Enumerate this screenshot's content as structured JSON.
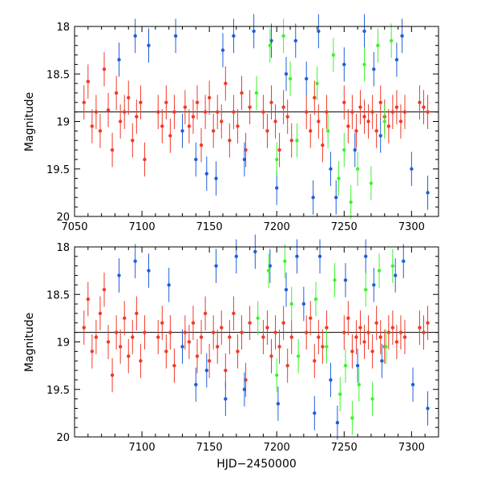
{
  "chart_data": [
    {
      "type": "scatter",
      "panel": "top",
      "title": "",
      "xlabel": "",
      "ylabel": "Magnitude",
      "xlim": [
        7050,
        7320
      ],
      "ylim": [
        18,
        20
      ],
      "y_inverted": true,
      "x_ticks": [
        7050,
        7100,
        7150,
        7200,
        7250,
        7300
      ],
      "y_ticks": [
        18,
        18.5,
        19,
        19.5,
        20
      ],
      "y_tick_labels": [
        "18",
        "18.5",
        "19",
        "19.5",
        "20"
      ],
      "reference_line_y": 18.9,
      "series": [
        {
          "name": "red",
          "color": "#f03a28",
          "points": [
            [
              7057,
              18.8
            ],
            [
              7060,
              18.58
            ],
            [
              7063,
              19.05
            ],
            [
              7066,
              18.9
            ],
            [
              7069,
              19.1
            ],
            [
              7072,
              18.45
            ],
            [
              7075,
              18.88
            ],
            [
              7078,
              19.3
            ],
            [
              7081,
              18.7
            ],
            [
              7084,
              19.0
            ],
            [
              7087,
              18.9
            ],
            [
              7090,
              18.75
            ],
            [
              7093,
              19.2
            ],
            [
              7096,
              18.95
            ],
            [
              7099,
              18.8
            ],
            [
              7102,
              19.4
            ],
            [
              7112,
              18.9
            ],
            [
              7115,
              19.05
            ],
            [
              7118,
              18.8
            ],
            [
              7121,
              19.15
            ],
            [
              7124,
              18.9
            ],
            [
              7132,
              18.85
            ],
            [
              7135,
              19.05
            ],
            [
              7138,
              18.95
            ],
            [
              7141,
              18.8
            ],
            [
              7144,
              19.25
            ],
            [
              7147,
              18.9
            ],
            [
              7150,
              18.75
            ],
            [
              7153,
              19.1
            ],
            [
              7156,
              18.9
            ],
            [
              7159,
              19.0
            ],
            [
              7162,
              18.6
            ],
            [
              7165,
              19.2
            ],
            [
              7168,
              18.9
            ],
            [
              7171,
              19.05
            ],
            [
              7174,
              18.7
            ],
            [
              7177,
              19.3
            ],
            [
              7180,
              18.85
            ],
            [
              7190,
              18.9
            ],
            [
              7193,
              19.1
            ],
            [
              7196,
              18.8
            ],
            [
              7199,
              19.0
            ],
            [
              7202,
              19.3
            ],
            [
              7205,
              18.85
            ],
            [
              7208,
              18.95
            ],
            [
              7211,
              19.2
            ],
            [
              7222,
              18.9
            ],
            [
              7225,
              19.1
            ],
            [
              7228,
              18.75
            ],
            [
              7231,
              19.0
            ],
            [
              7234,
              19.25
            ],
            [
              7237,
              18.9
            ],
            [
              7250,
              18.8
            ],
            [
              7253,
              19.05
            ],
            [
              7256,
              18.9
            ],
            [
              7259,
              19.1
            ],
            [
              7262,
              18.85
            ],
            [
              7265,
              18.95
            ],
            [
              7268,
              19.0
            ],
            [
              7271,
              18.9
            ],
            [
              7274,
              19.1
            ],
            [
              7277,
              18.8
            ],
            [
              7280,
              18.95
            ],
            [
              7283,
              19.05
            ],
            [
              7286,
              18.9
            ],
            [
              7289,
              18.85
            ],
            [
              7292,
              19.0
            ],
            [
              7295,
              18.9
            ],
            [
              7306,
              18.8
            ],
            [
              7309,
              18.85
            ],
            [
              7312,
              18.9
            ]
          ]
        },
        {
          "name": "blue",
          "color": "#1f5fd6",
          "points": [
            [
              7083,
              18.35
            ],
            [
              7095,
              18.1
            ],
            [
              7105,
              18.2
            ],
            [
              7125,
              18.1
            ],
            [
              7130,
              19.1
            ],
            [
              7140,
              19.4
            ],
            [
              7148,
              19.55
            ],
            [
              7155,
              19.6
            ],
            [
              7160,
              18.25
            ],
            [
              7168,
              18.1
            ],
            [
              7176,
              19.4
            ],
            [
              7183,
              18.05
            ],
            [
              7196,
              18.15
            ],
            [
              7200,
              19.7
            ],
            [
              7207,
              18.5
            ],
            [
              7214,
              18.15
            ],
            [
              7222,
              18.55
            ],
            [
              7227,
              19.8
            ],
            [
              7231,
              18.05
            ],
            [
              7240,
              19.5
            ],
            [
              7244,
              19.8
            ],
            [
              7250,
              18.4
            ],
            [
              7258,
              19.3
            ],
            [
              7265,
              18.05
            ],
            [
              7272,
              18.45
            ],
            [
              7277,
              19.15
            ],
            [
              7289,
              18.35
            ],
            [
              7293,
              18.1
            ],
            [
              7300,
              19.5
            ],
            [
              7312,
              19.75
            ]
          ]
        },
        {
          "name": "green",
          "color": "#3ef22e",
          "points": [
            [
              7185,
              18.7
            ],
            [
              7195,
              18.2
            ],
            [
              7200,
              19.4
            ],
            [
              7205,
              18.1
            ],
            [
              7210,
              18.55
            ],
            [
              7215,
              19.2
            ],
            [
              7230,
              18.6
            ],
            [
              7238,
              19.1
            ],
            [
              7242,
              18.3
            ],
            [
              7246,
              19.6
            ],
            [
              7250,
              19.3
            ],
            [
              7255,
              19.85
            ],
            [
              7260,
              19.5
            ],
            [
              7265,
              18.4
            ],
            [
              7270,
              19.65
            ],
            [
              7275,
              18.2
            ],
            [
              7280,
              19.0
            ],
            [
              7285,
              18.15
            ]
          ]
        }
      ]
    },
    {
      "type": "scatter",
      "panel": "bottom",
      "title": "",
      "xlabel": "HJD−2450000",
      "ylabel": "Magnitude",
      "xlim": [
        7050,
        7320
      ],
      "ylim": [
        18,
        20
      ],
      "y_inverted": true,
      "x_ticks": [
        7100,
        7150,
        7200,
        7250,
        7300
      ],
      "y_ticks": [
        18,
        18.5,
        19,
        19.5,
        20
      ],
      "y_tick_labels": [
        "18",
        "18.5",
        "19",
        "19.5",
        "20"
      ],
      "reference_line_y": 18.9,
      "series": [
        {
          "name": "red",
          "color": "#f03a28",
          "points": [
            [
              7057,
              18.85
            ],
            [
              7060,
              18.55
            ],
            [
              7063,
              19.1
            ],
            [
              7066,
              18.95
            ],
            [
              7069,
              18.7
            ],
            [
              7072,
              18.45
            ],
            [
              7075,
              19.0
            ],
            [
              7078,
              19.35
            ],
            [
              7081,
              18.9
            ],
            [
              7084,
              19.05
            ],
            [
              7087,
              18.75
            ],
            [
              7090,
              19.15
            ],
            [
              7093,
              18.95
            ],
            [
              7096,
              18.7
            ],
            [
              7099,
              19.2
            ],
            [
              7102,
              18.9
            ],
            [
              7112,
              18.95
            ],
            [
              7115,
              18.8
            ],
            [
              7118,
              19.1
            ],
            [
              7121,
              18.9
            ],
            [
              7124,
              19.25
            ],
            [
              7132,
              18.9
            ],
            [
              7135,
              19.0
            ],
            [
              7138,
              18.8
            ],
            [
              7141,
              19.15
            ],
            [
              7144,
              18.95
            ],
            [
              7147,
              18.7
            ],
            [
              7150,
              19.2
            ],
            [
              7153,
              18.9
            ],
            [
              7156,
              19.05
            ],
            [
              7159,
              18.85
            ],
            [
              7162,
              19.3
            ],
            [
              7165,
              18.95
            ],
            [
              7168,
              18.7
            ],
            [
              7171,
              19.1
            ],
            [
              7174,
              18.9
            ],
            [
              7177,
              19.4
            ],
            [
              7180,
              18.8
            ],
            [
              7190,
              18.95
            ],
            [
              7193,
              18.85
            ],
            [
              7196,
              19.15
            ],
            [
              7199,
              18.9
            ],
            [
              7202,
              19.05
            ],
            [
              7205,
              18.8
            ],
            [
              7208,
              19.25
            ],
            [
              7211,
              18.95
            ],
            [
              7222,
              18.9
            ],
            [
              7225,
              18.75
            ],
            [
              7228,
              19.2
            ],
            [
              7231,
              18.95
            ],
            [
              7234,
              19.05
            ],
            [
              7237,
              18.85
            ],
            [
              7250,
              18.9
            ],
            [
              7253,
              18.75
            ],
            [
              7256,
              19.1
            ],
            [
              7259,
              18.95
            ],
            [
              7262,
              18.85
            ],
            [
              7265,
              19.0
            ],
            [
              7268,
              18.9
            ],
            [
              7271,
              19.1
            ],
            [
              7274,
              18.8
            ],
            [
              7277,
              18.95
            ],
            [
              7280,
              19.05
            ],
            [
              7283,
              18.9
            ],
            [
              7286,
              18.85
            ],
            [
              7289,
              19.0
            ],
            [
              7292,
              18.9
            ],
            [
              7295,
              18.95
            ],
            [
              7306,
              18.85
            ],
            [
              7309,
              18.9
            ],
            [
              7312,
              18.8
            ]
          ]
        },
        {
          "name": "blue",
          "color": "#1f5fd6",
          "points": [
            [
              7083,
              18.3
            ],
            [
              7095,
              18.15
            ],
            [
              7105,
              18.25
            ],
            [
              7120,
              18.4
            ],
            [
              7130,
              19.05
            ],
            [
              7140,
              19.45
            ],
            [
              7148,
              19.3
            ],
            [
              7155,
              18.2
            ],
            [
              7162,
              19.6
            ],
            [
              7170,
              18.1
            ],
            [
              7176,
              19.5
            ],
            [
              7184,
              18.05
            ],
            [
              7195,
              18.2
            ],
            [
              7201,
              19.65
            ],
            [
              7207,
              18.45
            ],
            [
              7215,
              18.1
            ],
            [
              7220,
              18.6
            ],
            [
              7228,
              19.75
            ],
            [
              7232,
              18.1
            ],
            [
              7240,
              19.4
            ],
            [
              7245,
              19.85
            ],
            [
              7251,
              18.35
            ],
            [
              7260,
              19.25
            ],
            [
              7266,
              18.1
            ],
            [
              7272,
              18.4
            ],
            [
              7278,
              19.2
            ],
            [
              7288,
              18.3
            ],
            [
              7294,
              18.15
            ],
            [
              7301,
              19.45
            ],
            [
              7312,
              19.7
            ]
          ]
        },
        {
          "name": "green",
          "color": "#3ef22e",
          "points": [
            [
              7186,
              18.75
            ],
            [
              7194,
              18.25
            ],
            [
              7200,
              19.35
            ],
            [
              7206,
              18.15
            ],
            [
              7211,
              18.6
            ],
            [
              7216,
              19.15
            ],
            [
              7229,
              18.55
            ],
            [
              7237,
              19.05
            ],
            [
              7243,
              18.35
            ],
            [
              7247,
              19.55
            ],
            [
              7251,
              19.25
            ],
            [
              7256,
              19.8
            ],
            [
              7261,
              19.45
            ],
            [
              7266,
              18.45
            ],
            [
              7271,
              19.6
            ],
            [
              7276,
              18.25
            ],
            [
              7281,
              19.05
            ],
            [
              7286,
              18.2
            ]
          ]
        }
      ]
    }
  ]
}
